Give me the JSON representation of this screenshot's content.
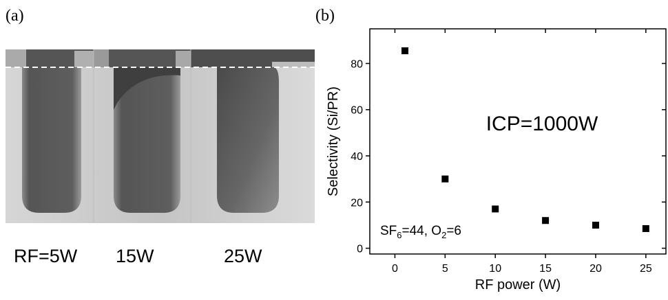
{
  "panels": {
    "a": {
      "label": "(a)",
      "sem_labels": [
        "RF=5W",
        "15W",
        "25W"
      ]
    },
    "b": {
      "label": "(b)"
    }
  },
  "chart_data": {
    "type": "scatter",
    "x": [
      1,
      5,
      10,
      15,
      20,
      25
    ],
    "values": [
      85.5,
      30,
      17,
      12,
      10,
      8.5
    ],
    "color": "#000000",
    "xlabel": "RF power (W)",
    "ylabel": "Selectivity (Si/PR)",
    "annotations": [
      {
        "text": "ICP=1000W"
      },
      {
        "parts": [
          "SF",
          "6",
          "=44, O",
          "2",
          "=6"
        ]
      }
    ],
    "xlim": [
      -2.5,
      27
    ],
    "ylim": [
      -2.5,
      95
    ],
    "xticks": [
      0,
      5,
      10,
      15,
      20,
      25
    ],
    "yticks": [
      0,
      20,
      40,
      60,
      80
    ],
    "grid": false
  }
}
